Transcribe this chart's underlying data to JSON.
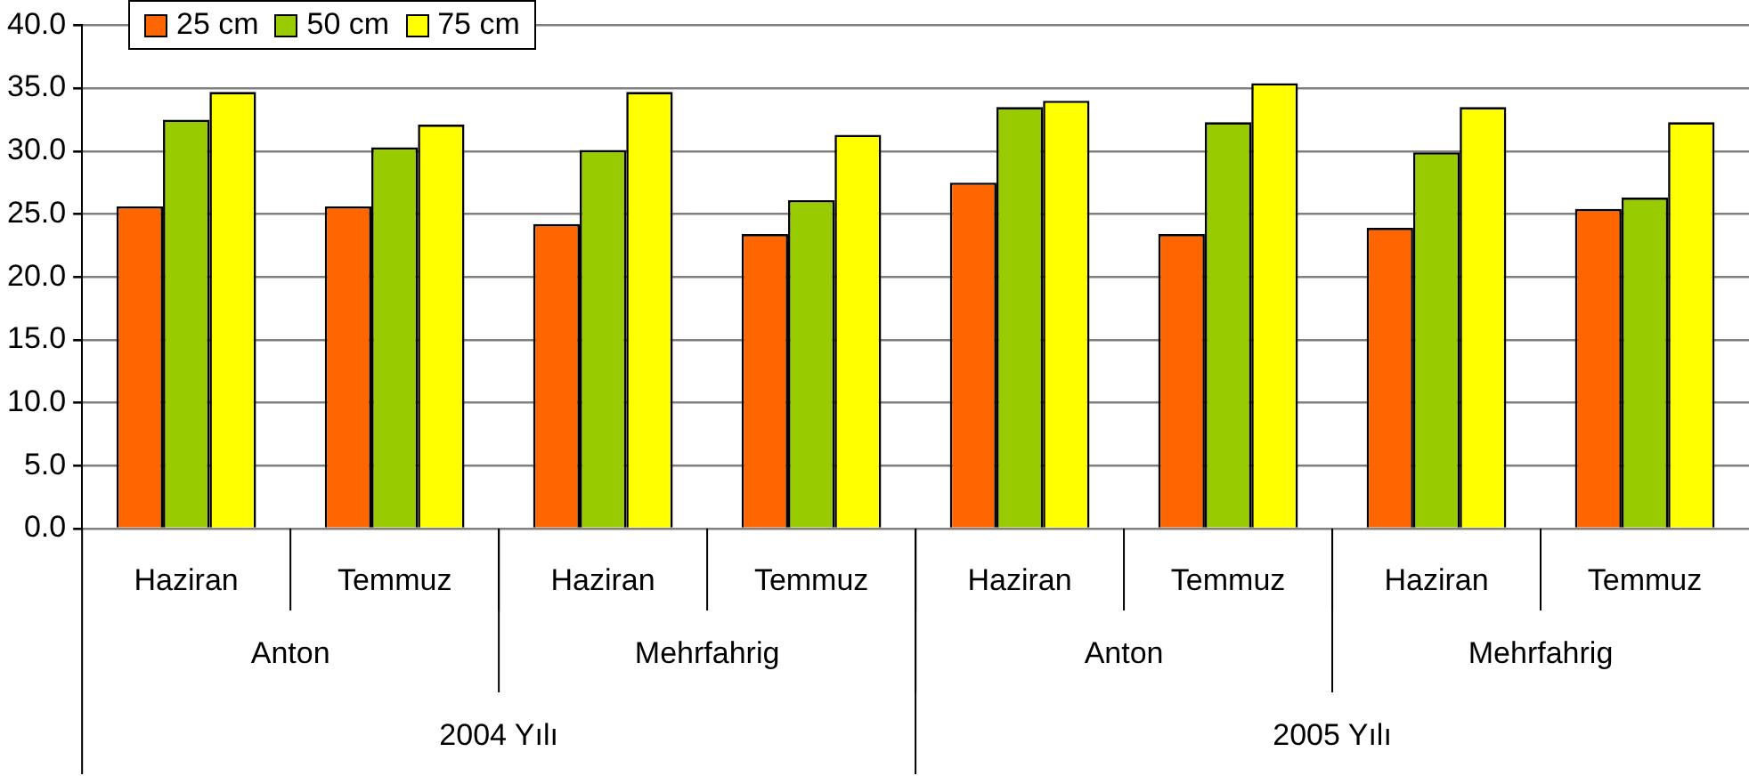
{
  "chart_data": {
    "type": "bar",
    "categories": [
      "Haziran",
      "Temmuz",
      "Haziran",
      "Temmuz",
      "Haziran",
      "Temmuz",
      "Haziran",
      "Temmuz"
    ],
    "annotations": [
      "Anton",
      "Mehrfahrig",
      "Anton",
      "Mehrfahrig",
      "2004 Yılı",
      "2005 Yılı"
    ],
    "series": [
      {
        "name": "25 cm",
        "color": "#ff6600",
        "values": [
          25.6,
          25.6,
          24.2,
          23.4,
          27.5,
          23.4,
          23.9,
          25.4
        ]
      },
      {
        "name": "50 cm",
        "color": "#99cc00",
        "values": [
          32.5,
          30.3,
          30.1,
          26.1,
          33.5,
          32.3,
          29.9,
          26.3
        ]
      },
      {
        "name": "75 cm",
        "color": "#ffff00",
        "values": [
          34.7,
          32.1,
          34.7,
          31.3,
          34.0,
          35.4,
          33.5,
          32.3
        ]
      }
    ],
    "ylim": [
      0,
      40
    ],
    "yticks": [
      {
        "value": 0,
        "label": "0.0"
      },
      {
        "value": 5,
        "label": "5.0"
      },
      {
        "value": 10,
        "label": "10.0"
      },
      {
        "value": 15,
        "label": "15.0"
      },
      {
        "value": 20,
        "label": "20.0"
      },
      {
        "value": 25,
        "label": "25.0"
      },
      {
        "value": 30,
        "label": "30.0"
      },
      {
        "value": 35,
        "label": "35.0"
      },
      {
        "value": 40,
        "label": "40.0"
      }
    ],
    "grid": "y",
    "legend": "top left"
  }
}
